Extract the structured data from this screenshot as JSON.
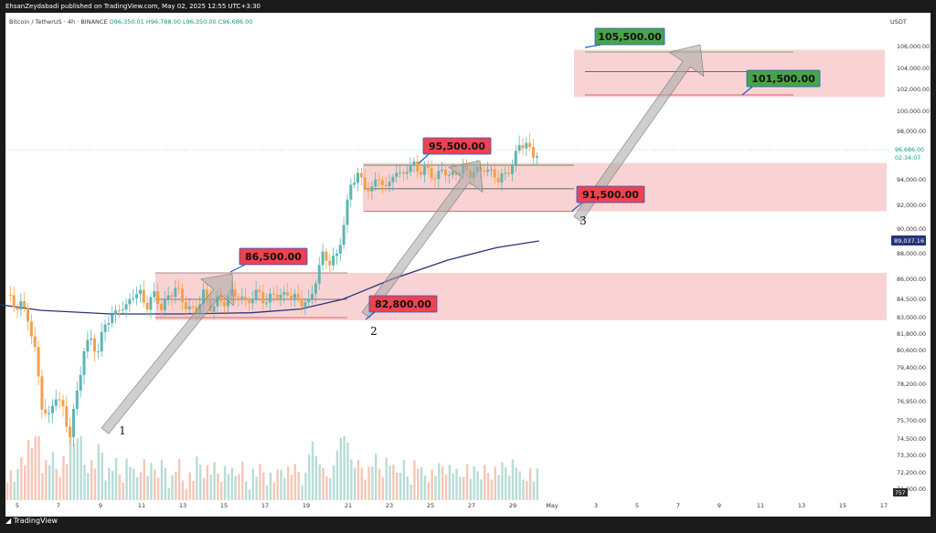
{
  "header": {
    "published_by": "EhsanZeydabadi published on TradingView.com, May 02, 2025 12:55 UTC+3:30"
  },
  "legend": {
    "symbol": "Bitcoin / TetherUS · 4h · BINANCE",
    "open": "O96,350.01",
    "high": "H96,788.00",
    "low": "L96,350.00",
    "close": "C96,686.00"
  },
  "footer": {
    "brand": "TradingView"
  },
  "currency": "USDT",
  "colors": {
    "up": "#5fb4b4",
    "down": "#f4a04a",
    "zone": "#f9d3d3",
    "ma": "#273377",
    "red_label": "#f0414f",
    "green_label": "#4aa34a",
    "arrow": "#a8a8a8"
  },
  "chart_data": {
    "type": "candlestick",
    "timeframe": "4h",
    "price_axis": [
      "106,000.00",
      "104,000.00",
      "102,000.00",
      "100,000.00",
      "98,000.00",
      "94,000.00",
      "92,000.00",
      "90,000.00",
      "88,000.00",
      "86,000.00",
      "84,500.00",
      "83,000.00",
      "81,800.00",
      "80,600.00",
      "79,400.00",
      "78,200.00",
      "76,950.00",
      "75,700.00",
      "74,500.00",
      "73,300.00",
      "72,200.00",
      "71,000.00"
    ],
    "date_axis": [
      "5",
      "7",
      "9",
      "11",
      "13",
      "15",
      "17",
      "19",
      "21",
      "23",
      "25",
      "27",
      "29",
      "May",
      "3",
      "5",
      "7",
      "9",
      "11",
      "13",
      "15",
      "17"
    ],
    "current_price": "96,686.00",
    "countdown": "02:34:07",
    "ma_value": "89,037.16",
    "volume_label": "757",
    "close_path": [
      [
        0,
        84.6
      ],
      [
        2,
        84.0
      ],
      [
        4,
        84.4
      ],
      [
        6,
        82.8
      ],
      [
        8,
        80.4
      ],
      [
        10,
        77.0
      ],
      [
        12,
        75.9
      ],
      [
        14,
        77.2
      ],
      [
        16,
        76.4
      ],
      [
        18,
        75.1
      ],
      [
        20,
        77.4
      ],
      [
        22,
        80.5
      ],
      [
        24,
        81.7
      ],
      [
        26,
        80.5
      ],
      [
        28,
        82.4
      ],
      [
        30,
        83.1
      ],
      [
        32,
        84.1
      ],
      [
        34,
        83.6
      ],
      [
        36,
        84.8
      ],
      [
        38,
        85.1
      ],
      [
        40,
        84.0
      ],
      [
        42,
        84.6
      ],
      [
        44,
        83.9
      ],
      [
        46,
        84.9
      ],
      [
        48,
        85.2
      ],
      [
        50,
        84.2
      ],
      [
        52,
        84.0
      ],
      [
        54,
        83.6
      ],
      [
        56,
        84.7
      ],
      [
        58,
        83.9
      ],
      [
        60,
        84.6
      ],
      [
        62,
        84.1
      ],
      [
        64,
        84.8
      ],
      [
        66,
        85.1
      ],
      [
        68,
        84.2
      ],
      [
        70,
        84.4
      ],
      [
        72,
        85.1
      ],
      [
        74,
        84.4
      ],
      [
        76,
        84.8
      ],
      [
        78,
        84.5
      ],
      [
        80,
        85.3
      ],
      [
        82,
        84.6
      ],
      [
        84,
        84.0
      ],
      [
        86,
        84.3
      ],
      [
        88,
        86.2
      ],
      [
        90,
        87.7
      ],
      [
        92,
        87.2
      ],
      [
        94,
        88.1
      ],
      [
        96,
        90.4
      ],
      [
        98,
        93.4
      ],
      [
        100,
        94.6
      ],
      [
        102,
        93.7
      ],
      [
        104,
        93.0
      ],
      [
        106,
        94.2
      ],
      [
        108,
        93.4
      ],
      [
        110,
        94.6
      ],
      [
        112,
        94.1
      ],
      [
        114,
        95.1
      ],
      [
        116,
        95.6
      ],
      [
        118,
        94.4
      ],
      [
        120,
        94.9
      ],
      [
        122,
        94.3
      ],
      [
        124,
        95.0
      ],
      [
        126,
        94.0
      ],
      [
        128,
        94.8
      ],
      [
        130,
        95.1
      ],
      [
        132,
        94.3
      ],
      [
        134,
        94.7
      ],
      [
        136,
        95.3
      ],
      [
        138,
        94.6
      ],
      [
        140,
        93.8
      ],
      [
        142,
        94.6
      ],
      [
        144,
        95.6
      ],
      [
        146,
        96.8
      ],
      [
        148,
        97.0
      ],
      [
        150,
        96.4
      ],
      [
        152,
        96.7
      ]
    ],
    "moving_average": [
      [
        -40,
        84.7
      ],
      [
        -10,
        84.4
      ],
      [
        10,
        83.6
      ],
      [
        30,
        83.3
      ],
      [
        50,
        83.3
      ],
      [
        70,
        83.4
      ],
      [
        84,
        83.7
      ],
      [
        96,
        84.5
      ],
      [
        110,
        86.0
      ],
      [
        126,
        87.5
      ],
      [
        140,
        88.5
      ],
      [
        152,
        89.04
      ]
    ],
    "zones": [
      {
        "name": "upper-target-zone",
        "low": 101300,
        "high": 105700
      },
      {
        "name": "mid-zone",
        "low": 91500,
        "high": 95500
      },
      {
        "name": "lower-zone",
        "low": 82800,
        "high": 86500
      }
    ],
    "levels": [
      {
        "label": "105,500.00",
        "value": 105500,
        "kind": "green"
      },
      {
        "label": "101,500.00",
        "value": 101500,
        "kind": "green"
      },
      {
        "label": "95,500.00",
        "value": 95500,
        "kind": "red"
      },
      {
        "label": "91,500.00",
        "value": 91500,
        "kind": "red"
      },
      {
        "label": "86,500.00",
        "value": 86500,
        "kind": "red"
      },
      {
        "label": "82,800.00",
        "value": 82800,
        "kind": "red"
      }
    ],
    "wave_points": [
      "1",
      "2",
      "3"
    ]
  }
}
